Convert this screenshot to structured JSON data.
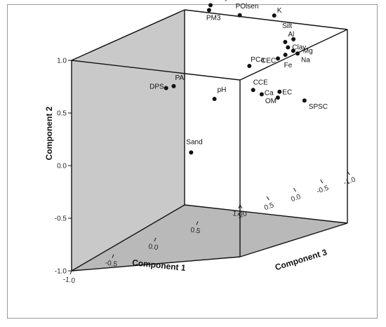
{
  "chart_data": {
    "type": "scatter",
    "title": "",
    "xlabel": "Component 1",
    "ylabel": "Component 2",
    "zlabel": "Component 3",
    "xlim": [
      -1.0,
      1.0
    ],
    "ylim": [
      -1.0,
      1.0
    ],
    "zlim": [
      -1.0,
      1.0
    ],
    "x_ticks": [
      "-1.0",
      "-0.5",
      "0.0",
      "0.5",
      "1.0"
    ],
    "y_ticks": [
      "1.0",
      "0.5",
      "0.0",
      "-0.5",
      "-1.0"
    ],
    "z_ticks": [
      "1.0",
      "0.5",
      "0.0",
      "-0.5",
      "-1.0"
    ],
    "wall_colors": {
      "left": "#c9c9c9",
      "floor": "#b9b9b9",
      "back": "#ffffff"
    },
    "point_color": "#111111",
    "points": [
      {
        "label": "PBray",
        "x": 0.28,
        "y": 1.03,
        "z": 0.42
      },
      {
        "label": "PM3",
        "x": 0.25,
        "y": 0.99,
        "z": 0.4
      },
      {
        "label": "POlsen",
        "x": 0.55,
        "y": 0.83,
        "z": 0.3
      },
      {
        "label": "K",
        "x": 0.8,
        "y": 0.71,
        "z": 0.05
      },
      {
        "label": "DPS",
        "x": -0.12,
        "y": 0.4,
        "z": 0.62
      },
      {
        "label": "PAl",
        "x": -0.03,
        "y": 0.39,
        "z": 0.62
      },
      {
        "label": "Silt",
        "x": 0.92,
        "y": 0.42,
        "z": -0.12
      },
      {
        "label": "Al",
        "x": 0.88,
        "y": 0.42,
        "z": -0.03
      },
      {
        "label": "Clay",
        "x": 0.9,
        "y": 0.36,
        "z": -0.05
      },
      {
        "label": "PCa",
        "x": 0.55,
        "y": 0.32,
        "z": 0.12
      },
      {
        "label": "Mg",
        "x": 0.93,
        "y": 0.31,
        "z": -0.1
      },
      {
        "label": "CEC",
        "x": 0.8,
        "y": 0.29,
        "z": -0.02
      },
      {
        "label": "Fe",
        "x": 0.85,
        "y": 0.3,
        "z": -0.08
      },
      {
        "label": "Na",
        "x": 0.95,
        "y": 0.27,
        "z": -0.15
      },
      {
        "label": "pH",
        "x": 0.25,
        "y": 0.13,
        "z": 0.3
      },
      {
        "label": "CCE",
        "x": 0.55,
        "y": 0.08,
        "z": 0.05
      },
      {
        "label": "Ca",
        "x": 0.62,
        "y": 0.01,
        "z": 0.0
      },
      {
        "label": "EC",
        "x": 0.8,
        "y": -0.03,
        "z": -0.05
      },
      {
        "label": "OM",
        "x": 0.78,
        "y": -0.08,
        "z": -0.05
      },
      {
        "label": "SPSC",
        "x": 1.0,
        "y": -0.2,
        "z": -0.2
      },
      {
        "label": "Sand",
        "x": 0.1,
        "y": -0.3,
        "z": 0.5
      }
    ]
  }
}
